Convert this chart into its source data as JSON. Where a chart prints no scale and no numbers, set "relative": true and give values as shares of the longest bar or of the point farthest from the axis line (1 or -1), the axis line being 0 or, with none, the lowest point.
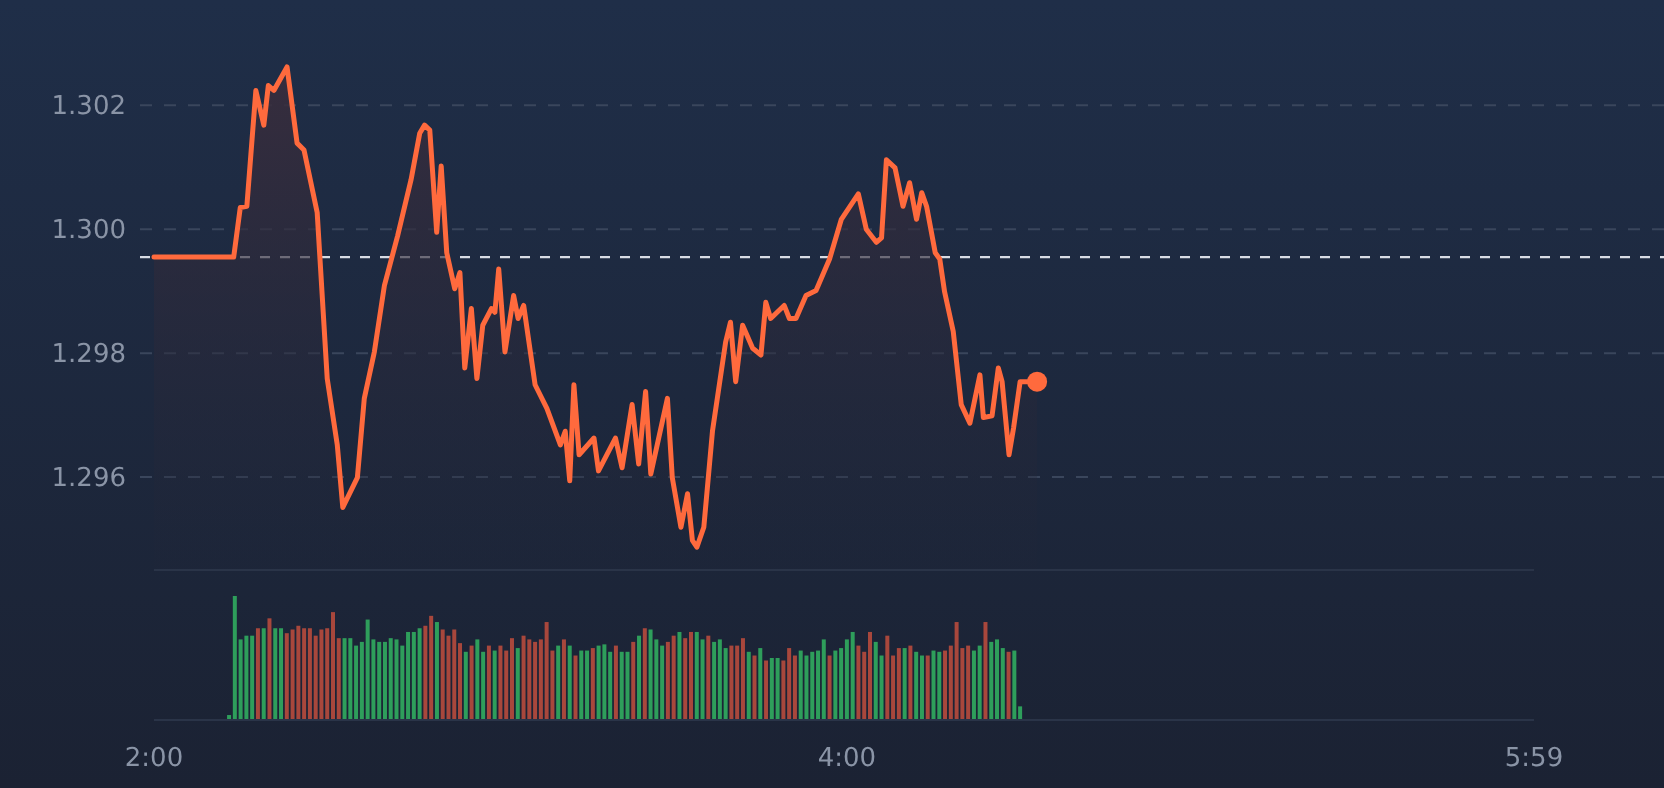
{
  "chart_data": [
    {
      "type": "area",
      "x": [
        2,
        2.23,
        2.249,
        2.268,
        2.294,
        2.317,
        2.33,
        2.346,
        2.384,
        2.413,
        2.433,
        2.471,
        2.5,
        2.529,
        2.545,
        2.587,
        2.607,
        2.636,
        2.665,
        2.703,
        2.742,
        2.767,
        2.781,
        2.796,
        2.816,
        2.829,
        2.845,
        2.868,
        2.883,
        2.897,
        2.916,
        2.932,
        2.949,
        2.974,
        2.984,
        2.995,
        3.013,
        3.038,
        3.051,
        3.067,
        3.1,
        3.134,
        3.173,
        3.187,
        3.2,
        3.212,
        3.227,
        3.27,
        3.283,
        3.332,
        3.351,
        3.38,
        3.399,
        3.419,
        3.434,
        3.482,
        3.496,
        3.521,
        3.54,
        3.554,
        3.567,
        3.587,
        3.612,
        3.65,
        3.664,
        3.679,
        3.699,
        3.728,
        3.752,
        3.766,
        3.78,
        3.819,
        3.834,
        3.853,
        3.882,
        3.911,
        3.95,
        3.984,
        4.033,
        4.056,
        4.085,
        4.1,
        4.114,
        4.139,
        4.162,
        4.181,
        4.201,
        4.216,
        4.23,
        4.255,
        4.268,
        4.282,
        4.307,
        4.33,
        4.355,
        4.384,
        4.394,
        4.419,
        4.437,
        4.448,
        4.468,
        4.481,
        4.5,
        4.549
      ],
      "series": [
        {
          "color": "#ff6a3d",
          "values": [
            1.29955,
            1.29955,
            1.30035,
            1.30037,
            1.30224,
            1.30168,
            1.30232,
            1.30224,
            1.30262,
            1.30139,
            1.30128,
            1.30027,
            1.29759,
            1.29652,
            1.29551,
            1.29599,
            1.29727,
            1.29802,
            1.29909,
            1.29989,
            1.3008,
            1.30155,
            1.30168,
            1.3016,
            1.29995,
            1.30102,
            1.29962,
            1.29904,
            1.2993,
            1.29776,
            1.29872,
            1.29759,
            1.29845,
            1.29872,
            1.29866,
            1.29936,
            1.29802,
            1.29893,
            1.29856,
            1.29877,
            1.29749,
            1.29711,
            1.29652,
            1.29674,
            1.29594,
            1.29749,
            1.29636,
            1.29663,
            1.2961,
            1.29663,
            1.29615,
            1.29717,
            1.29621,
            1.29738,
            1.29605,
            1.29727,
            1.29599,
            1.29519,
            1.29573,
            1.29498,
            1.29487,
            1.29519,
            1.29674,
            1.29818,
            1.2985,
            1.29754,
            1.29845,
            1.29808,
            1.29797,
            1.29882,
            1.29856,
            1.29877,
            1.29856,
            1.29856,
            1.29893,
            1.29901,
            1.29952,
            1.30016,
            1.30057,
            1.3,
            1.29979,
            1.29986,
            1.30112,
            1.30099,
            1.30037,
            1.30075,
            1.30016,
            1.30059,
            1.30037,
            1.29962,
            1.29952,
            1.29899,
            1.29835,
            1.29717,
            1.29687,
            1.29765,
            1.29696,
            1.29699,
            1.29776,
            1.29754,
            1.29636,
            1.29679,
            1.29754,
            1.29754
          ]
        }
      ],
      "xlim": [
        2,
        5.9833
      ],
      "xticks": [
        {
          "value": 2,
          "label": "2:00"
        },
        {
          "value": 4,
          "label": "4:00"
        },
        {
          "value": 5.9833,
          "label": "5:59"
        }
      ],
      "ylim": [
        1.2945,
        1.3037
      ],
      "yticks": [
        {
          "value": 1.296,
          "label": "1.296"
        },
        {
          "value": 1.298,
          "label": "1.298"
        },
        {
          "value": 1.3,
          "label": "1.300"
        },
        {
          "value": 1.302,
          "label": "1.302"
        }
      ],
      "grid": "y",
      "line_style": "solid",
      "ref_lines": [
        {
          "axis": "y",
          "value": 1.29955,
          "color": "#d8dce4",
          "line_style": "dashed"
        }
      ]
    },
    {
      "type": "bar",
      "relative": true,
      "xlim": [
        2,
        5.9833
      ],
      "x": [
        2.2167,
        2.2333,
        2.25,
        2.2667,
        2.2833,
        2.3,
        2.3167,
        2.3333,
        2.35,
        2.3667,
        2.3833,
        2.4,
        2.4167,
        2.4333,
        2.45,
        2.4667,
        2.4833,
        2.5,
        2.5167,
        2.5333,
        2.55,
        2.5667,
        2.5833,
        2.6,
        2.6167,
        2.6333,
        2.65,
        2.6667,
        2.6833,
        2.7,
        2.7167,
        2.7333,
        2.75,
        2.7667,
        2.7833,
        2.8,
        2.8167,
        2.8333,
        2.85,
        2.8667,
        2.8833,
        2.9,
        2.9167,
        2.9333,
        2.95,
        2.9667,
        2.9833,
        3,
        3.0167,
        3.0333,
        3.05,
        3.0667,
        3.0833,
        3.1,
        3.1167,
        3.1333,
        3.15,
        3.1667,
        3.1833,
        3.2,
        3.2167,
        3.2333,
        3.25,
        3.2667,
        3.2833,
        3.3,
        3.3167,
        3.3333,
        3.35,
        3.3667,
        3.3833,
        3.4,
        3.4167,
        3.4333,
        3.45,
        3.4667,
        3.4833,
        3.5,
        3.5167,
        3.5333,
        3.55,
        3.5667,
        3.5833,
        3.6,
        3.6167,
        3.6333,
        3.65,
        3.6667,
        3.6833,
        3.7,
        3.7167,
        3.7333,
        3.75,
        3.7667,
        3.7833,
        3.8,
        3.8167,
        3.8333,
        3.85,
        3.8667,
        3.8833,
        3.9,
        3.9167,
        3.9333,
        3.95,
        3.9667,
        3.9833,
        4,
        4.0167,
        4.0333,
        4.05,
        4.0667,
        4.0833,
        4.1,
        4.1167,
        4.1333,
        4.15,
        4.1667,
        4.1833,
        4.2,
        4.2167,
        4.2333,
        4.25,
        4.2667,
        4.2833,
        4.3,
        4.3167,
        4.3333,
        4.35,
        4.3667,
        4.3833,
        4.4,
        4.4167,
        4.4333,
        4.45,
        4.4667,
        4.4833,
        4.5
      ],
      "values": [
        0.04,
        1,
        0.65,
        0.68,
        0.68,
        0.74,
        0.74,
        0.82,
        0.74,
        0.74,
        0.7,
        0.73,
        0.76,
        0.74,
        0.74,
        0.68,
        0.73,
        0.74,
        0.87,
        0.66,
        0.66,
        0.66,
        0.6,
        0.63,
        0.81,
        0.65,
        0.63,
        0.63,
        0.66,
        0.65,
        0.6,
        0.71,
        0.71,
        0.74,
        0.76,
        0.84,
        0.79,
        0.73,
        0.68,
        0.73,
        0.62,
        0.55,
        0.6,
        0.65,
        0.55,
        0.6,
        0.56,
        0.6,
        0.56,
        0.66,
        0.58,
        0.68,
        0.65,
        0.63,
        0.65,
        0.79,
        0.56,
        0.6,
        0.65,
        0.6,
        0.52,
        0.56,
        0.56,
        0.58,
        0.6,
        0.61,
        0.55,
        0.6,
        0.55,
        0.55,
        0.63,
        0.68,
        0.74,
        0.73,
        0.65,
        0.6,
        0.63,
        0.68,
        0.71,
        0.66,
        0.71,
        0.71,
        0.65,
        0.68,
        0.63,
        0.65,
        0.58,
        0.6,
        0.6,
        0.66,
        0.55,
        0.52,
        0.58,
        0.48,
        0.5,
        0.5,
        0.48,
        0.58,
        0.52,
        0.56,
        0.52,
        0.55,
        0.56,
        0.65,
        0.52,
        0.56,
        0.58,
        0.65,
        0.71,
        0.6,
        0.55,
        0.71,
        0.63,
        0.52,
        0.68,
        0.52,
        0.58,
        0.58,
        0.6,
        0.55,
        0.52,
        0.52,
        0.56,
        0.55,
        0.56,
        0.6,
        0.79,
        0.58,
        0.6,
        0.56,
        0.6,
        0.79,
        0.63,
        0.65,
        0.58,
        0.55,
        0.56,
        0.11
      ],
      "colors": [
        "#2e9e5b",
        "#2e9e5b",
        "#2e9e5b",
        "#2e9e5b",
        "#2e9e5b",
        "#a8473c",
        "#2e9e5b",
        "#a8473c",
        "#2e9e5b",
        "#2e9e5b",
        "#a8473c",
        "#a8473c",
        "#a8473c",
        "#a8473c",
        "#a8473c",
        "#a8473c",
        "#a8473c",
        "#a8473c",
        "#a8473c",
        "#a8473c",
        "#2e9e5b",
        "#2e9e5b",
        "#2e9e5b",
        "#2e9e5b",
        "#2e9e5b",
        "#2e9e5b",
        "#2e9e5b",
        "#2e9e5b",
        "#2e9e5b",
        "#2e9e5b",
        "#2e9e5b",
        "#2e9e5b",
        "#2e9e5b",
        "#2e9e5b",
        "#a8473c",
        "#a8473c",
        "#2e9e5b",
        "#a8473c",
        "#a8473c",
        "#a8473c",
        "#a8473c",
        "#2e9e5b",
        "#a8473c",
        "#2e9e5b",
        "#2e9e5b",
        "#a8473c",
        "#2e9e5b",
        "#a8473c",
        "#a8473c",
        "#a8473c",
        "#2e9e5b",
        "#a8473c",
        "#a8473c",
        "#a8473c",
        "#a8473c",
        "#a8473c",
        "#a8473c",
        "#2e9e5b",
        "#a8473c",
        "#2e9e5b",
        "#a8473c",
        "#2e9e5b",
        "#2e9e5b",
        "#a8473c",
        "#2e9e5b",
        "#2e9e5b",
        "#2e9e5b",
        "#a8473c",
        "#2e9e5b",
        "#2e9e5b",
        "#a8473c",
        "#2e9e5b",
        "#a8473c",
        "#2e9e5b",
        "#2e9e5b",
        "#2e9e5b",
        "#a8473c",
        "#a8473c",
        "#2e9e5b",
        "#a8473c",
        "#a8473c",
        "#2e9e5b",
        "#2e9e5b",
        "#a8473c",
        "#2e9e5b",
        "#2e9e5b",
        "#2e9e5b",
        "#a8473c",
        "#a8473c",
        "#a8473c",
        "#2e9e5b",
        "#a8473c",
        "#2e9e5b",
        "#a8473c",
        "#2e9e5b",
        "#2e9e5b",
        "#a8473c",
        "#a8473c",
        "#a8473c",
        "#2e9e5b",
        "#2e9e5b",
        "#2e9e5b",
        "#2e9e5b",
        "#2e9e5b",
        "#a8473c",
        "#2e9e5b",
        "#2e9e5b",
        "#2e9e5b",
        "#2e9e5b",
        "#a8473c",
        "#a8473c",
        "#a8473c",
        "#2e9e5b",
        "#2e9e5b",
        "#a8473c",
        "#a8473c",
        "#a8473c",
        "#2e9e5b",
        "#a8473c",
        "#2e9e5b",
        "#2e9e5b",
        "#a8473c",
        "#2e9e5b",
        "#2e9e5b",
        "#a8473c",
        "#a8473c",
        "#a8473c",
        "#a8473c",
        "#a8473c",
        "#2e9e5b",
        "#2e9e5b",
        "#a8473c",
        "#2e9e5b",
        "#2e9e5b",
        "#2e9e5b",
        "#a8473c",
        "#2e9e5b",
        "#2e9e5b"
      ]
    }
  ]
}
